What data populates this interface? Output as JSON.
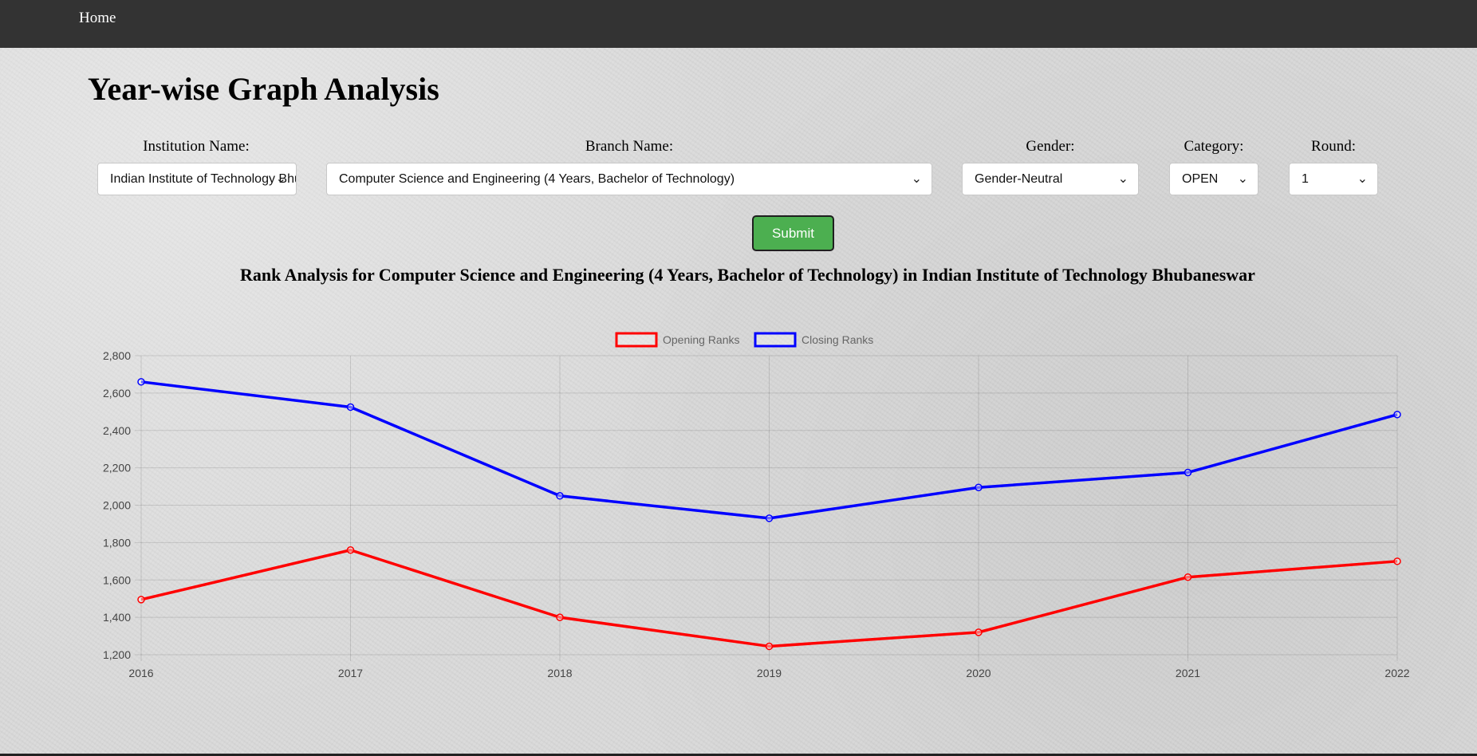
{
  "nav": {
    "home_label": "Home"
  },
  "page": {
    "title": "Year-wise Graph Analysis"
  },
  "form": {
    "institution": {
      "label": "Institution Name:",
      "value": "Indian Institute of Technology Bhubaneswar"
    },
    "branch": {
      "label": "Branch Name:",
      "value": "Computer Science and Engineering (4 Years, Bachelor of Technology)"
    },
    "gender": {
      "label": "Gender:",
      "value": "Gender-Neutral"
    },
    "category": {
      "label": "Category:",
      "value": "OPEN"
    },
    "round": {
      "label": "Round:",
      "value": "1"
    },
    "submit_label": "Submit"
  },
  "icons": {
    "dropdown": "chevron-down-icon"
  },
  "chart_title": "Rank Analysis for Computer Science and Engineering (4 Years, Bachelor of Technology) in Indian Institute of Technology Bhubaneswar",
  "colors": {
    "navbar": "#333333",
    "submit": "#4caf50",
    "opening": "#ff0000",
    "closing": "#0000ff"
  },
  "chart_data": {
    "type": "line",
    "x": [
      "2016",
      "2017",
      "2018",
      "2019",
      "2020",
      "2021",
      "2022"
    ],
    "series": [
      {
        "name": "Opening Ranks",
        "color": "#ff0000",
        "values": [
          1495,
          1760,
          1400,
          1245,
          1320,
          1615,
          1700
        ]
      },
      {
        "name": "Closing Ranks",
        "color": "#0000ff",
        "values": [
          2660,
          2525,
          2050,
          1930,
          2095,
          2175,
          2485
        ]
      }
    ],
    "ylim": [
      1200,
      2800
    ],
    "yticks": [
      "2,800",
      "2,600",
      "2,400",
      "2,200",
      "2,000",
      "1,800",
      "1,600",
      "1,400",
      "1,200"
    ],
    "grid": true,
    "legend": "top-center"
  }
}
